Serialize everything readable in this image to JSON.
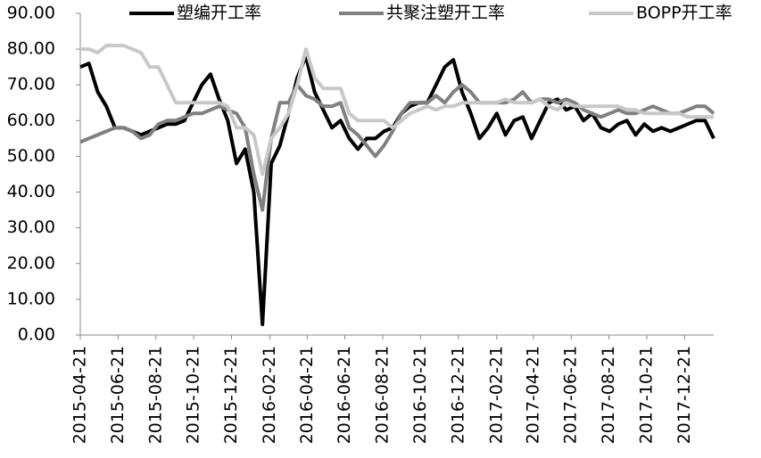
{
  "chart_data": {
    "type": "line",
    "x": [
      "2015-04-21",
      "2015-05-05",
      "2015-05-19",
      "2015-06-02",
      "2015-06-16",
      "2015-06-30",
      "2015-07-14",
      "2015-07-28",
      "2015-08-11",
      "2015-08-25",
      "2015-09-08",
      "2015-09-22",
      "2015-10-06",
      "2015-10-20",
      "2015-11-03",
      "2015-11-17",
      "2015-12-01",
      "2015-12-15",
      "2015-12-29",
      "2016-01-12",
      "2016-01-26",
      "2016-02-09",
      "2016-02-23",
      "2016-03-08",
      "2016-03-22",
      "2016-04-05",
      "2016-04-19",
      "2016-05-03",
      "2016-05-17",
      "2016-05-31",
      "2016-06-14",
      "2016-06-28",
      "2016-07-12",
      "2016-07-26",
      "2016-08-09",
      "2016-08-23",
      "2016-09-06",
      "2016-09-20",
      "2016-10-04",
      "2016-10-18",
      "2016-11-01",
      "2016-11-15",
      "2016-11-29",
      "2016-12-13",
      "2016-12-27",
      "2017-01-10",
      "2017-01-24",
      "2017-02-07",
      "2017-02-21",
      "2017-03-07",
      "2017-03-21",
      "2017-04-04",
      "2017-04-18",
      "2017-05-02",
      "2017-05-16",
      "2017-05-30",
      "2017-06-13",
      "2017-06-27",
      "2017-07-11",
      "2017-07-25",
      "2017-08-08",
      "2017-08-22",
      "2017-09-05",
      "2017-09-19",
      "2017-10-03",
      "2017-10-17",
      "2017-10-31",
      "2017-11-14",
      "2017-11-28",
      "2017-12-12",
      "2017-12-26",
      "2018-01-09",
      "2018-01-23",
      "2018-02-06"
    ],
    "series": [
      {
        "name": "塑编开工率",
        "color": "#000000",
        "values": [
          75,
          76,
          68,
          64,
          58,
          58,
          57,
          56,
          57,
          58,
          59,
          59,
          60,
          65,
          70,
          73,
          66,
          60,
          48,
          52,
          40,
          3,
          48,
          53,
          62,
          72,
          78,
          68,
          63,
          58,
          60,
          55,
          52,
          55,
          55,
          57,
          58,
          62,
          64,
          65,
          65,
          70,
          75,
          77,
          68,
          62,
          55,
          58,
          62,
          56,
          60,
          61,
          55,
          60,
          65,
          66,
          63,
          64,
          60,
          62,
          58,
          57,
          59,
          60,
          56,
          59,
          57,
          58,
          57,
          58,
          59,
          60,
          60,
          55
        ]
      },
      {
        "name": "共聚注塑开工率",
        "color": "#808080",
        "values": [
          54,
          55,
          56,
          57,
          58,
          58,
          57,
          55,
          56,
          59,
          60,
          60,
          61,
          62,
          62,
          63,
          64,
          63,
          62,
          58,
          45,
          35,
          55,
          65,
          65,
          70,
          67,
          66,
          64,
          64,
          65,
          58,
          56,
          53,
          50,
          53,
          57,
          62,
          65,
          65,
          65,
          67,
          65,
          68,
          70,
          68,
          65,
          65,
          65,
          65,
          66,
          68,
          65,
          66,
          66,
          65,
          66,
          65,
          63,
          62,
          61,
          62,
          63,
          62,
          62,
          63,
          64,
          63,
          62,
          62,
          63,
          64,
          64,
          62
        ]
      },
      {
        "name": "BOPP开工率",
        "color": "#c8c8c8",
        "values": [
          80,
          80,
          79,
          81,
          81,
          81,
          80,
          79,
          75,
          75,
          70,
          65,
          65,
          65,
          65,
          65,
          65,
          64,
          58,
          58,
          56,
          45,
          55,
          58,
          62,
          70,
          80,
          72,
          69,
          69,
          69,
          62,
          60,
          60,
          60,
          60,
          58,
          60,
          62,
          63,
          64,
          63,
          64,
          64,
          65,
          65,
          65,
          65,
          65,
          66,
          65,
          65,
          65,
          66,
          64,
          63,
          65,
          64,
          64,
          64,
          64,
          64,
          64,
          63,
          63,
          62,
          62,
          62,
          62,
          62,
          61,
          61,
          61,
          61
        ]
      }
    ],
    "xlim": [
      "2015-04-21",
      "2018-02-06"
    ],
    "xticks": [
      "2015-04-21",
      "2015-06-21",
      "2015-08-21",
      "2015-10-21",
      "2015-12-21",
      "2016-02-21",
      "2016-04-21",
      "2016-06-21",
      "2016-08-21",
      "2016-10-21",
      "2016-12-21",
      "2017-02-21",
      "2017-04-21",
      "2017-06-21",
      "2017-08-21",
      "2017-10-21",
      "2017-12-21"
    ],
    "ylim": [
      0,
      90
    ],
    "yticks": [
      {
        "value": 0,
        "label": "0.00"
      },
      {
        "value": 10,
        "label": "10.00"
      },
      {
        "value": 20,
        "label": "20.00"
      },
      {
        "value": 30,
        "label": "30.00"
      },
      {
        "value": 40,
        "label": "40.00"
      },
      {
        "value": 50,
        "label": "50.00"
      },
      {
        "value": 60,
        "label": "60.00"
      },
      {
        "value": 70,
        "label": "70.00"
      },
      {
        "value": 80,
        "label": "80.00"
      },
      {
        "value": 90,
        "label": "90.00"
      }
    ],
    "legend": "top"
  }
}
